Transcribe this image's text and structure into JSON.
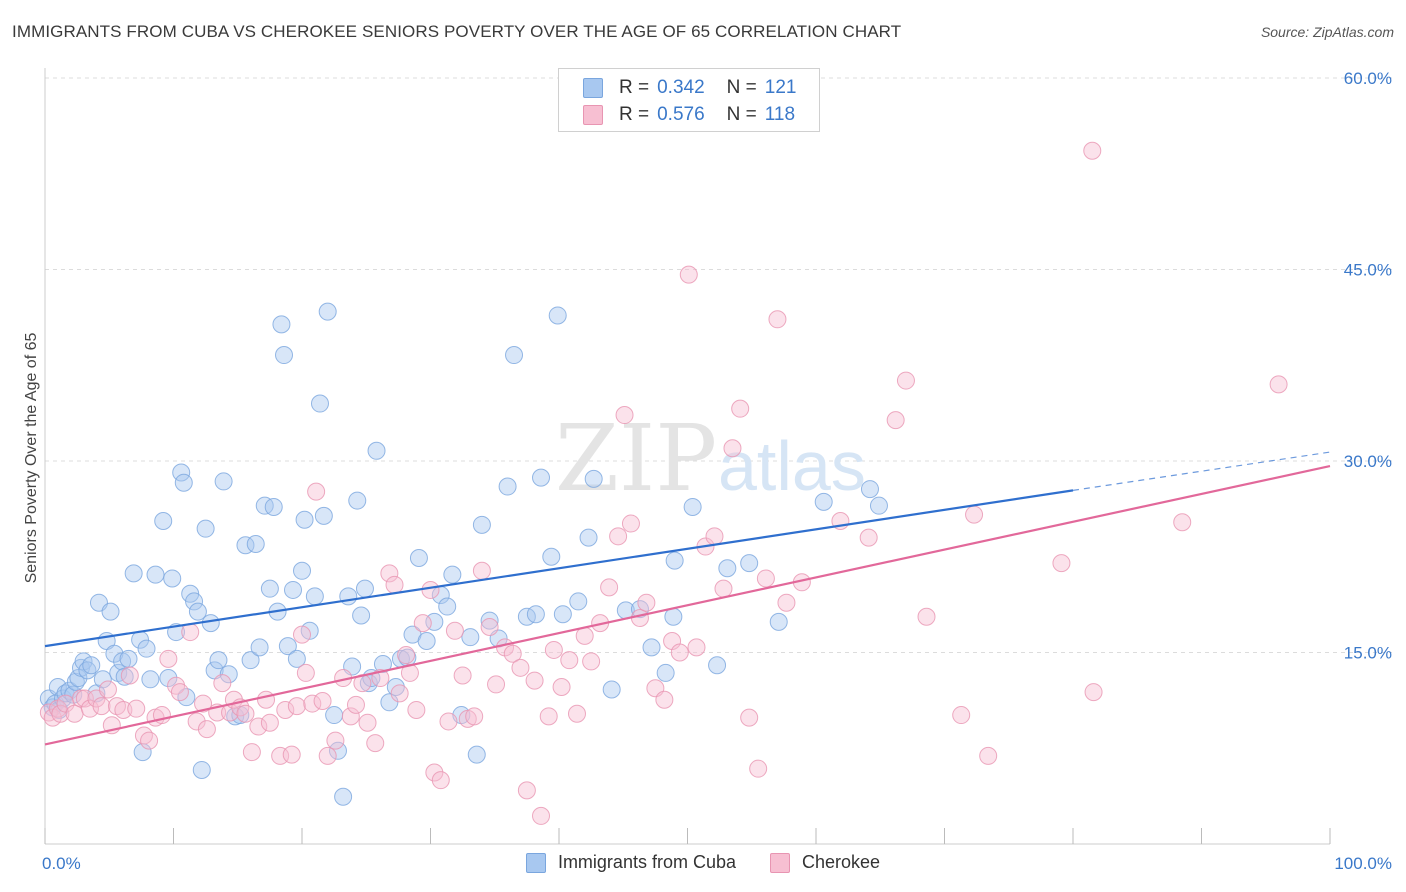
{
  "title": "IMMIGRANTS FROM CUBA VS CHEROKEE SENIORS POVERTY OVER THE AGE OF 65 CORRELATION CHART",
  "source": "Source: ZipAtlas.com",
  "watermark": {
    "zip": "ZIP",
    "atlas": "atlas"
  },
  "legend": {
    "rows": [
      {
        "r_label": "R =",
        "r_value": "0.342",
        "n_label": "N =",
        "n_value": "121",
        "color": "#a8c8f0",
        "border": "#7aa6de"
      },
      {
        "r_label": "R =",
        "r_value": "0.576",
        "n_label": "N =",
        "n_value": "118",
        "color": "#f7bfd2",
        "border": "#e895b2"
      }
    ]
  },
  "bottom_legend": [
    "Immigrants from Cuba",
    "Cherokee"
  ],
  "chart_data": {
    "type": "scatter",
    "xlabel": "",
    "ylabel": "Seniors Poverty Over the Age of 65",
    "xlim": [
      0,
      100
    ],
    "ylim": [
      0,
      60
    ],
    "x_tick_labels": [
      "0.0%",
      "100.0%"
    ],
    "y_ticks": [
      15,
      30,
      45,
      60
    ],
    "y_tick_labels": [
      "15.0%",
      "30.0%",
      "45.0%",
      "60.0%"
    ],
    "grid": true,
    "series": [
      {
        "name": "Immigrants from Cuba",
        "color": "#7aa6de",
        "fill": "#a8c8f0",
        "line_color": "#2f6fce",
        "trend": {
          "x0": 0,
          "y0": 15.5,
          "x1": 80,
          "y1": 27.7,
          "dashed_to_x": 100,
          "dashed_to_y": 30.7
        },
        "points": [
          [
            0.3,
            11.4
          ],
          [
            0.6,
            10.7
          ],
          [
            0.8,
            11.0
          ],
          [
            1.0,
            12.3
          ],
          [
            1.1,
            10.5
          ],
          [
            1.4,
            11.4
          ],
          [
            1.6,
            11.8
          ],
          [
            1.9,
            12.0
          ],
          [
            2.2,
            11.7
          ],
          [
            2.4,
            12.7
          ],
          [
            2.6,
            13.0
          ],
          [
            2.8,
            13.8
          ],
          [
            3.0,
            14.3
          ],
          [
            3.3,
            13.6
          ],
          [
            3.6,
            14.0
          ],
          [
            4.0,
            11.8
          ],
          [
            4.2,
            18.9
          ],
          [
            4.5,
            12.9
          ],
          [
            4.8,
            15.9
          ],
          [
            5.1,
            18.2
          ],
          [
            5.4,
            14.9
          ],
          [
            5.7,
            13.4
          ],
          [
            6.0,
            14.3
          ],
          [
            6.2,
            13.1
          ],
          [
            6.5,
            14.5
          ],
          [
            6.9,
            21.2
          ],
          [
            7.4,
            16.0
          ],
          [
            7.6,
            7.2
          ],
          [
            7.9,
            15.3
          ],
          [
            8.2,
            12.9
          ],
          [
            8.6,
            21.1
          ],
          [
            9.2,
            25.3
          ],
          [
            9.6,
            13.0
          ],
          [
            9.9,
            20.8
          ],
          [
            10.2,
            16.6
          ],
          [
            10.6,
            29.1
          ],
          [
            10.8,
            28.3
          ],
          [
            11.0,
            11.5
          ],
          [
            11.3,
            19.6
          ],
          [
            11.6,
            19.0
          ],
          [
            11.9,
            18.2
          ],
          [
            12.2,
            5.8
          ],
          [
            12.5,
            24.7
          ],
          [
            12.9,
            17.3
          ],
          [
            13.2,
            13.6
          ],
          [
            13.5,
            14.4
          ],
          [
            13.9,
            28.4
          ],
          [
            14.3,
            13.3
          ],
          [
            14.8,
            10.0
          ],
          [
            15.2,
            10.1
          ],
          [
            15.6,
            23.4
          ],
          [
            16.0,
            14.4
          ],
          [
            16.4,
            23.5
          ],
          [
            16.7,
            15.4
          ],
          [
            17.1,
            26.5
          ],
          [
            17.5,
            20.0
          ],
          [
            17.8,
            26.4
          ],
          [
            18.1,
            18.2
          ],
          [
            18.4,
            40.7
          ],
          [
            18.6,
            38.3
          ],
          [
            18.9,
            15.5
          ],
          [
            19.3,
            19.9
          ],
          [
            19.6,
            14.5
          ],
          [
            20.0,
            21.4
          ],
          [
            20.2,
            25.4
          ],
          [
            20.6,
            16.7
          ],
          [
            21.0,
            19.4
          ],
          [
            21.4,
            34.5
          ],
          [
            21.7,
            25.7
          ],
          [
            22.0,
            41.7
          ],
          [
            22.5,
            10.1
          ],
          [
            22.8,
            7.3
          ],
          [
            23.2,
            3.7
          ],
          [
            23.6,
            19.4
          ],
          [
            23.9,
            13.9
          ],
          [
            24.3,
            26.9
          ],
          [
            24.6,
            17.9
          ],
          [
            24.9,
            20.0
          ],
          [
            25.2,
            12.6
          ],
          [
            25.4,
            13.0
          ],
          [
            25.8,
            30.8
          ],
          [
            26.3,
            14.1
          ],
          [
            26.8,
            11.1
          ],
          [
            27.3,
            12.3
          ],
          [
            27.7,
            14.5
          ],
          [
            28.2,
            14.6
          ],
          [
            28.6,
            16.4
          ],
          [
            29.1,
            22.4
          ],
          [
            29.7,
            15.9
          ],
          [
            30.3,
            17.4
          ],
          [
            30.8,
            19.5
          ],
          [
            31.3,
            18.6
          ],
          [
            31.7,
            21.1
          ],
          [
            32.4,
            10.1
          ],
          [
            33.1,
            16.2
          ],
          [
            33.6,
            7.0
          ],
          [
            34.0,
            25.0
          ],
          [
            34.6,
            17.5
          ],
          [
            35.3,
            16.1
          ],
          [
            36.0,
            28.0
          ],
          [
            36.5,
            38.3
          ],
          [
            37.5,
            17.8
          ],
          [
            38.2,
            18.0
          ],
          [
            38.6,
            28.7
          ],
          [
            39.4,
            22.5
          ],
          [
            39.9,
            41.4
          ],
          [
            40.3,
            18.0
          ],
          [
            41.5,
            19.0
          ],
          [
            42.3,
            24.0
          ],
          [
            42.7,
            28.6
          ],
          [
            44.1,
            12.1
          ],
          [
            45.2,
            18.3
          ],
          [
            46.3,
            18.4
          ],
          [
            47.2,
            15.4
          ],
          [
            48.3,
            13.4
          ],
          [
            48.9,
            17.8
          ],
          [
            49.0,
            22.2
          ],
          [
            50.4,
            26.4
          ],
          [
            52.3,
            14.0
          ],
          [
            53.1,
            21.6
          ],
          [
            54.8,
            22.0
          ],
          [
            57.1,
            17.4
          ],
          [
            60.6,
            26.8
          ],
          [
            64.2,
            27.8
          ],
          [
            64.9,
            26.5
          ]
        ]
      },
      {
        "name": "Cherokee",
        "color": "#e895b2",
        "fill": "#f7bfd2",
        "line_color": "#e2689a",
        "trend": {
          "x0": 0,
          "y0": 7.8,
          "x1": 100,
          "y1": 29.6
        },
        "points": [
          [
            0.3,
            10.3
          ],
          [
            0.6,
            9.9
          ],
          [
            1.0,
            10.6
          ],
          [
            1.2,
            10.2
          ],
          [
            1.6,
            11.0
          ],
          [
            2.3,
            10.2
          ],
          [
            2.8,
            11.4
          ],
          [
            3.1,
            11.4
          ],
          [
            3.5,
            10.6
          ],
          [
            4.0,
            11.4
          ],
          [
            4.4,
            10.8
          ],
          [
            4.9,
            12.1
          ],
          [
            5.2,
            9.3
          ],
          [
            5.6,
            10.8
          ],
          [
            6.1,
            10.5
          ],
          [
            6.6,
            13.2
          ],
          [
            7.1,
            10.6
          ],
          [
            7.7,
            8.5
          ],
          [
            8.1,
            8.1
          ],
          [
            8.6,
            9.9
          ],
          [
            9.1,
            10.1
          ],
          [
            9.6,
            14.5
          ],
          [
            10.2,
            12.4
          ],
          [
            10.5,
            11.9
          ],
          [
            11.3,
            16.6
          ],
          [
            11.8,
            9.6
          ],
          [
            12.3,
            11.0
          ],
          [
            12.6,
            9.0
          ],
          [
            13.4,
            10.3
          ],
          [
            13.8,
            12.6
          ],
          [
            14.4,
            10.3
          ],
          [
            14.7,
            11.3
          ],
          [
            15.2,
            10.7
          ],
          [
            15.6,
            10.2
          ],
          [
            16.1,
            7.2
          ],
          [
            16.6,
            9.2
          ],
          [
            17.2,
            11.3
          ],
          [
            17.5,
            9.5
          ],
          [
            18.3,
            6.9
          ],
          [
            18.7,
            10.5
          ],
          [
            19.2,
            7.0
          ],
          [
            19.6,
            10.8
          ],
          [
            20.0,
            16.4
          ],
          [
            20.3,
            13.4
          ],
          [
            20.8,
            11.0
          ],
          [
            21.1,
            27.6
          ],
          [
            21.6,
            11.2
          ],
          [
            22.0,
            6.9
          ],
          [
            22.6,
            8.1
          ],
          [
            23.2,
            13.0
          ],
          [
            23.8,
            10.0
          ],
          [
            24.2,
            10.9
          ],
          [
            24.7,
            12.6
          ],
          [
            25.1,
            9.5
          ],
          [
            25.7,
            7.9
          ],
          [
            26.1,
            13.0
          ],
          [
            26.8,
            21.2
          ],
          [
            27.2,
            20.3
          ],
          [
            27.6,
            11.8
          ],
          [
            28.1,
            14.8
          ],
          [
            28.4,
            13.4
          ],
          [
            28.9,
            10.5
          ],
          [
            29.4,
            17.3
          ],
          [
            30.0,
            19.9
          ],
          [
            30.3,
            5.6
          ],
          [
            30.8,
            5.0
          ],
          [
            31.4,
            9.6
          ],
          [
            31.9,
            16.7
          ],
          [
            32.5,
            13.2
          ],
          [
            32.9,
            9.8
          ],
          [
            33.4,
            10.0
          ],
          [
            34.0,
            21.4
          ],
          [
            34.6,
            17.0
          ],
          [
            35.1,
            12.5
          ],
          [
            35.8,
            15.4
          ],
          [
            36.4,
            14.9
          ],
          [
            37.0,
            13.8
          ],
          [
            37.5,
            4.2
          ],
          [
            38.1,
            12.8
          ],
          [
            38.6,
            2.2
          ],
          [
            39.2,
            10.0
          ],
          [
            39.6,
            15.2
          ],
          [
            40.2,
            12.3
          ],
          [
            40.8,
            14.4
          ],
          [
            41.4,
            10.2
          ],
          [
            42.0,
            16.3
          ],
          [
            42.5,
            14.3
          ],
          [
            43.2,
            17.3
          ],
          [
            43.9,
            20.1
          ],
          [
            44.6,
            24.1
          ],
          [
            45.1,
            33.6
          ],
          [
            45.6,
            25.1
          ],
          [
            46.3,
            17.7
          ],
          [
            46.8,
            18.9
          ],
          [
            47.5,
            12.2
          ],
          [
            48.2,
            11.3
          ],
          [
            48.8,
            15.9
          ],
          [
            49.4,
            15.0
          ],
          [
            50.1,
            44.6
          ],
          [
            50.7,
            15.4
          ],
          [
            51.4,
            23.3
          ],
          [
            52.1,
            24.1
          ],
          [
            52.8,
            20.0
          ],
          [
            53.5,
            31.0
          ],
          [
            54.1,
            34.1
          ],
          [
            54.8,
            9.9
          ],
          [
            55.5,
            5.9
          ],
          [
            56.1,
            20.8
          ],
          [
            57.0,
            41.1
          ],
          [
            57.7,
            18.9
          ],
          [
            58.9,
            20.5
          ],
          [
            61.9,
            25.3
          ],
          [
            64.1,
            24.0
          ],
          [
            66.2,
            33.2
          ],
          [
            67.0,
            36.3
          ],
          [
            68.6,
            17.8
          ],
          [
            71.3,
            10.1
          ],
          [
            72.3,
            25.8
          ],
          [
            73.4,
            6.9
          ],
          [
            79.1,
            22.0
          ],
          [
            81.6,
            11.9
          ],
          [
            81.5,
            54.3
          ],
          [
            88.5,
            25.2
          ],
          [
            96.0,
            36.0
          ]
        ]
      }
    ]
  }
}
